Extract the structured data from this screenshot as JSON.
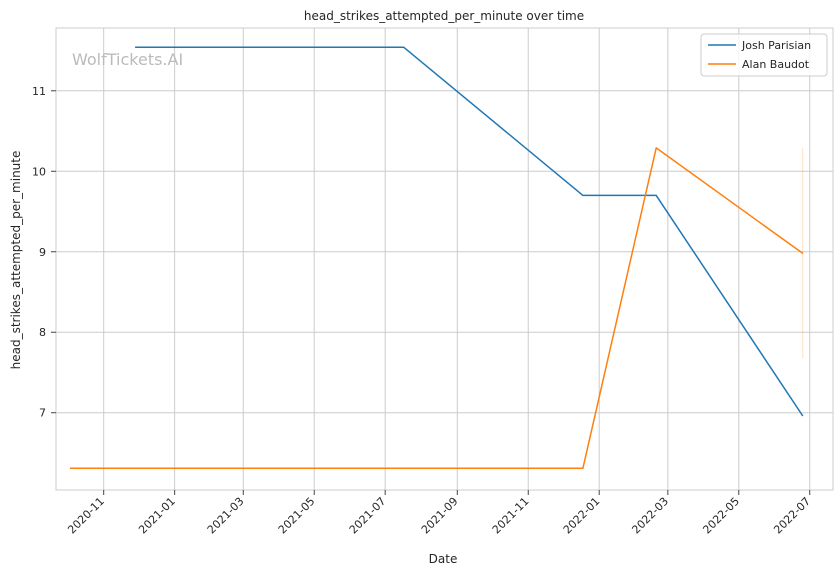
{
  "watermark": "WolfTickets.AI",
  "chart_data": {
    "type": "line",
    "title": "head_strikes_attempted_per_minute over time",
    "xlabel": "Date",
    "ylabel": "head_strikes_attempted_per_minute",
    "x_ticks": [
      "2020-11",
      "2021-01",
      "2021-03",
      "2021-05",
      "2021-07",
      "2021-09",
      "2021-11",
      "2022-01",
      "2022-03",
      "2022-05",
      "2022-07"
    ],
    "y_ticks": [
      7,
      8,
      9,
      10,
      11
    ],
    "xlim": [
      "2020-09-21",
      "2022-07-21"
    ],
    "ylim": [
      6.04,
      11.78
    ],
    "grid": true,
    "legend_position": "top-right",
    "series": [
      {
        "name": "Josh Parisian",
        "color": "#1f77b4",
        "points": [
          {
            "x": "2020-11-28",
            "y": 11.54
          },
          {
            "x": "2021-07-17",
            "y": 11.54
          },
          {
            "x": "2021-12-18",
            "y": 9.7
          },
          {
            "x": "2022-02-19",
            "y": 9.7
          },
          {
            "x": "2022-06-25",
            "y": 6.96
          }
        ]
      },
      {
        "name": "Alan Baudot",
        "color": "#ff7f0e",
        "points": [
          {
            "x": "2020-10-03",
            "y": 6.31
          },
          {
            "x": "2021-12-18",
            "y": 6.31
          },
          {
            "x": "2022-02-19",
            "y": 10.29
          },
          {
            "x": "2022-06-25",
            "y": 8.98
          }
        ],
        "error_bar": {
          "x": "2022-06-25",
          "low": 7.67,
          "high": 10.29
        }
      }
    ]
  }
}
